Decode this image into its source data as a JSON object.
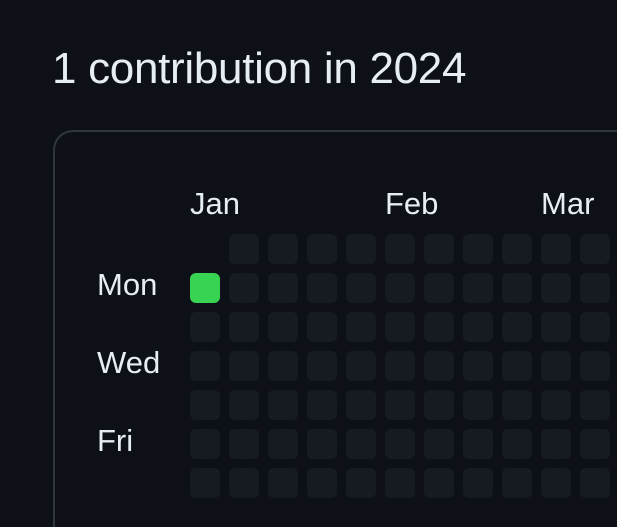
{
  "header": {
    "title": "1 contribution in 2024"
  },
  "graph": {
    "year": 2024,
    "months": [
      "Jan",
      "Feb",
      "Mar"
    ],
    "weekday_labels": [
      "Mon",
      "Wed",
      "Fri"
    ],
    "contributions": [
      {
        "date": "2024-01-01",
        "count": 1
      }
    ],
    "colors": {
      "empty": "#161b22",
      "level4": "#39d353",
      "background": "#0d1117",
      "border": "#30363d"
    }
  }
}
